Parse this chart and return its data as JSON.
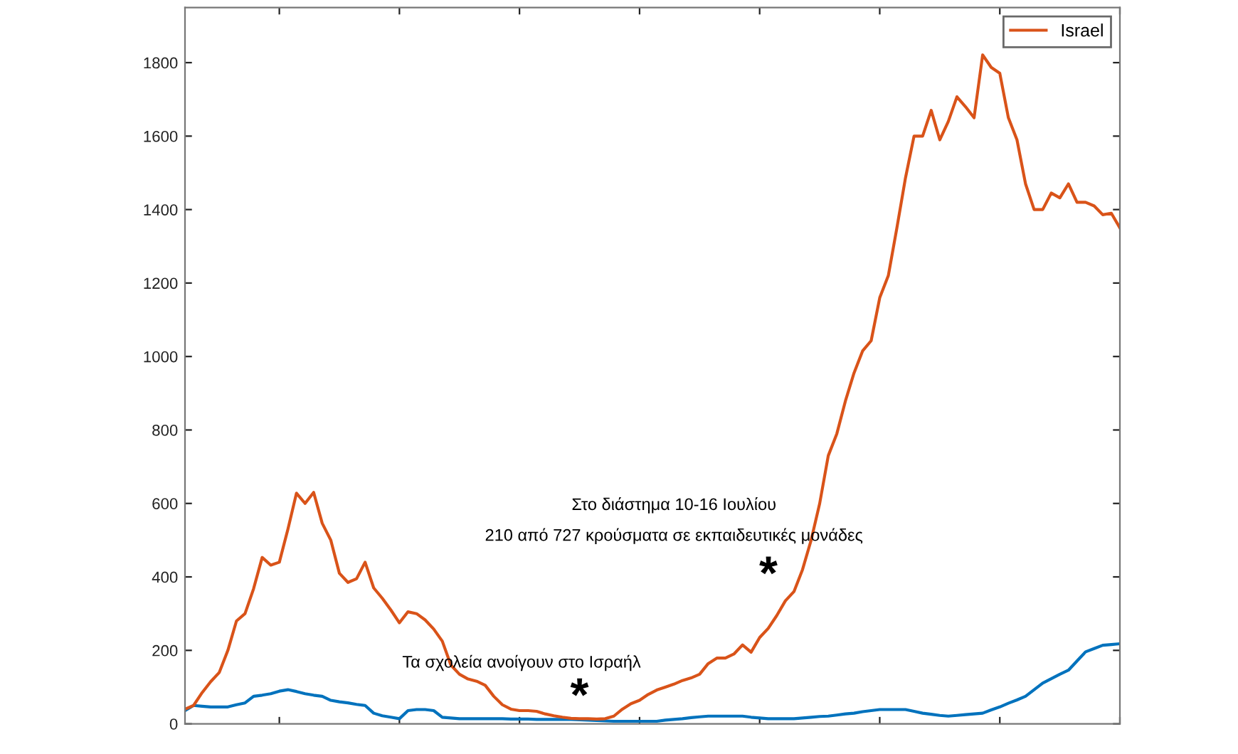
{
  "chart_data": {
    "type": "line",
    "categories": [
      null,
      null,
      null,
      null,
      null,
      null,
      null,
      null,
      null,
      null,
      null,
      null,
      null,
      null,
      null,
      null,
      null,
      null,
      null,
      null,
      null,
      null,
      null,
      null,
      null,
      null,
      null,
      null,
      null,
      null,
      null,
      null,
      null,
      null,
      null,
      null,
      null,
      null,
      null,
      null,
      null,
      null,
      null,
      null,
      null,
      null,
      null,
      null,
      null,
      null,
      null,
      null,
      null,
      null,
      null,
      null,
      null,
      null,
      null,
      null,
      null,
      null,
      null,
      null,
      null,
      null,
      null,
      null,
      null,
      null,
      null,
      null,
      null,
      null,
      null,
      null,
      null,
      null,
      null,
      null,
      null,
      null,
      null,
      null,
      null,
      null,
      null,
      null,
      null,
      null,
      null,
      null,
      null,
      null,
      null,
      null,
      null,
      null,
      null,
      null,
      null,
      null,
      null,
      null,
      null,
      null,
      null,
      null,
      null,
      null
    ],
    "ylim": [
      0,
      1950
    ],
    "yticks": [
      0,
      200,
      400,
      600,
      800,
      1000,
      1200,
      1400,
      1600,
      1800
    ],
    "tick_labels": "y",
    "legend": "top right",
    "marker": "none",
    "line_style": "solid",
    "series": [
      {
        "color": "#0072bd",
        "values": [
          36,
          50,
          48,
          46,
          46,
          46,
          52,
          57,
          75,
          78,
          82,
          89,
          93,
          88,
          82,
          78,
          75,
          64,
          60,
          57,
          53,
          50,
          29,
          22,
          18,
          14,
          36,
          39,
          39,
          36,
          18,
          16,
          14,
          14,
          14,
          14,
          14,
          14,
          13,
          13,
          13,
          12,
          12,
          12,
          12,
          12,
          11,
          10,
          9,
          8,
          7,
          7,
          7,
          7,
          7,
          7,
          10,
          12,
          14,
          17,
          19,
          21,
          21,
          21,
          21,
          21,
          18,
          16,
          14,
          14,
          14,
          14,
          16,
          18,
          20,
          21,
          24,
          27,
          29,
          33,
          36,
          39,
          39,
          39,
          39,
          34,
          29,
          26,
          23,
          21,
          23,
          25,
          27,
          29,
          38,
          46,
          56,
          65,
          75,
          93,
          111,
          123,
          135,
          146,
          171,
          196,
          205,
          214,
          216,
          218
        ]
      },
      {
        "name": "Israel",
        "color": "#d95319",
        "values": [
          40,
          50,
          85,
          115,
          140,
          200,
          280,
          300,
          368,
          453,
          432,
          440,
          530,
          628,
          600,
          630,
          546,
          500,
          410,
          385,
          395,
          440,
          370,
          342,
          310,
          275,
          305,
          300,
          283,
          258,
          225,
          160,
          135,
          122,
          116,
          105,
          75,
          52,
          40,
          36,
          36,
          34,
          27,
          22,
          18,
          15,
          14,
          14,
          13,
          14,
          21,
          40,
          55,
          64,
          80,
          92,
          100,
          108,
          118,
          125,
          135,
          164,
          179,
          179,
          190,
          215,
          195,
          235,
          260,
          295,
          335,
          360,
          420,
          500,
          600,
          730,
          790,
          879,
          955,
          1015,
          1043,
          1160,
          1220,
          1350,
          1486,
          1600,
          1600,
          1670,
          1590,
          1640,
          1707,
          1680,
          1650,
          1821,
          1787,
          1771,
          1650,
          1590,
          1470,
          1400,
          1400,
          1445,
          1432,
          1470,
          1420,
          1420,
          1410,
          1386,
          1390,
          1350
        ]
      }
    ],
    "annotations": [
      "*",
      "Τα σχολεία ανοίγουν στο Ισραήλ",
      "*",
      "Στο διάστημα 10-16 Ιουλίου",
      "210 από 727 κρούσματα σε εκπαιδευτικές μονάδες"
    ]
  }
}
